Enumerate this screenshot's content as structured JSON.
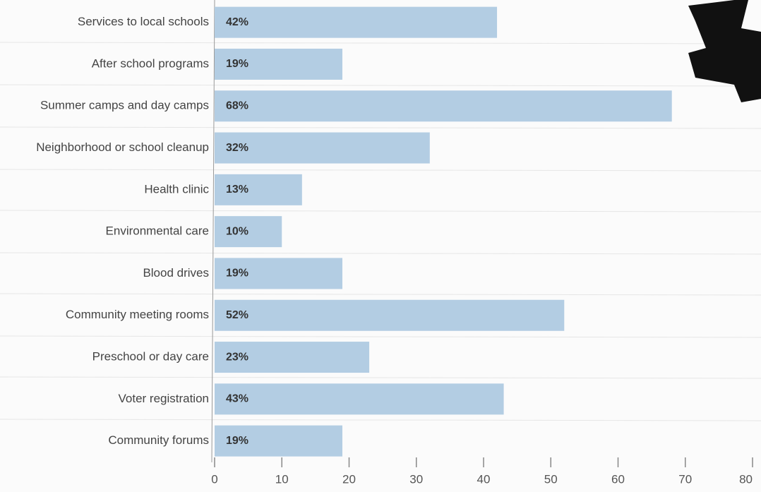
{
  "chart_data": {
    "type": "bar",
    "orientation": "horizontal",
    "categories": [
      "Services to local schools",
      "After school programs",
      "Summer camps and day camps",
      "Neighborhood or school cleanup",
      "Health clinic",
      "Environmental care",
      "Blood drives",
      "Community meeting rooms",
      "Preschool or day care",
      "Voter registration",
      "Community forums"
    ],
    "values": [
      42,
      19,
      68,
      32,
      13,
      10,
      19,
      52,
      23,
      43,
      19
    ],
    "value_labels": [
      "42%",
      "19%",
      "68%",
      "32%",
      "13%",
      "10%",
      "19%",
      "52%",
      "23%",
      "43%",
      "19%"
    ],
    "color": "#b3cde3",
    "xlim": [
      0,
      80
    ],
    "xticks": [
      0,
      10,
      20,
      30,
      40,
      50,
      60,
      70,
      80
    ]
  }
}
